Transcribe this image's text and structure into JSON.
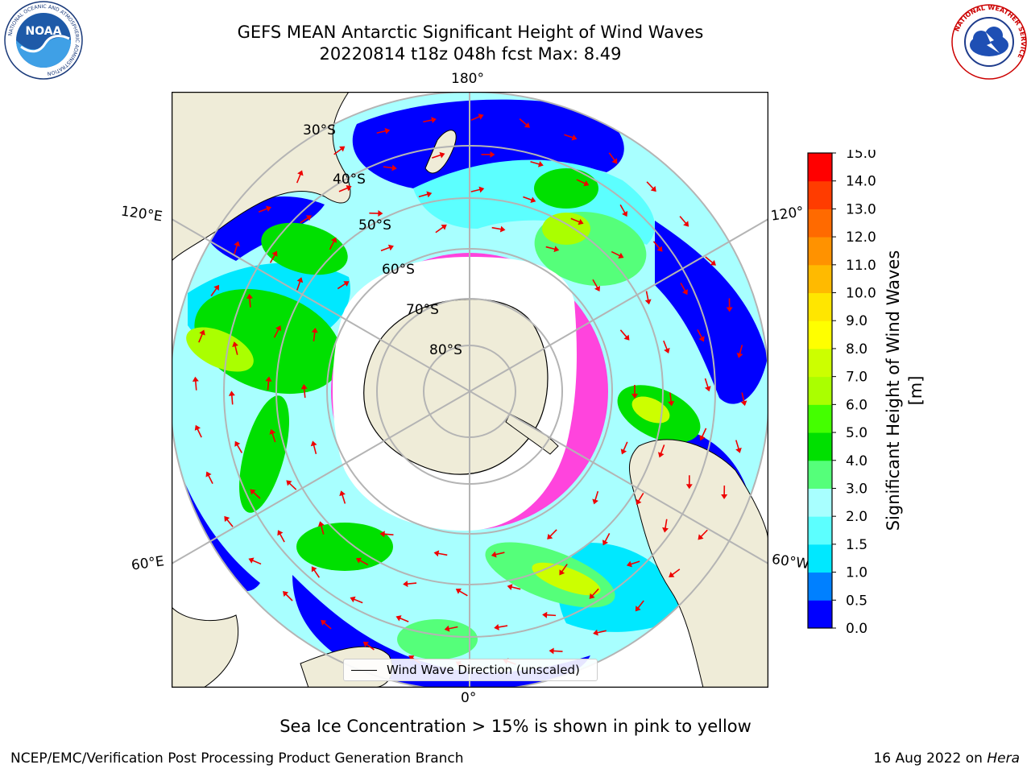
{
  "header": {
    "title_line1": "GEFS MEAN Antarctic Significant Height of Wind Waves",
    "title_line2": "20220814 t18z 048h fcst   Max: 8.49"
  },
  "logos": {
    "noaa": {
      "center_text": "NOAA",
      "ring_text": "NATIONAL OCEANIC AND ATMOSPHERIC ADMINISTRATION",
      "bottom_text": "U.S. DEPARTMENT OF COMMERCE"
    },
    "nws": {
      "ring_text": "NATIONAL WEATHER SERVICE"
    }
  },
  "map": {
    "projection": "south polar stereographic",
    "lon_labels": {
      "top": "180°",
      "bottom": "0°",
      "upper_left": "120°E",
      "lower_left": "60°E",
      "upper_right": "120°",
      "lower_right": "60°W"
    },
    "lat_labels": [
      "30°S",
      "40°S",
      "50°S",
      "60°S",
      "70°S",
      "80°S"
    ],
    "legend_label": "Wind Wave Direction (unscaled)",
    "colors": {
      "land": "#efecd8",
      "coast": "#000000",
      "grid": "#b4b4b4",
      "ice": "#ff44dd",
      "arrow": "#ee0000"
    }
  },
  "colorbar": {
    "label": "Significant Height of Wind Waves [m]",
    "ticks": [
      "0.0",
      "0.5",
      "1.0",
      "1.5",
      "2.0",
      "3.0",
      "4.0",
      "5.0",
      "6.0",
      "7.0",
      "8.0",
      "9.0",
      "10.0",
      "11.0",
      "12.0",
      "13.0",
      "14.0",
      "15.0"
    ],
    "colors": [
      "#0000ff",
      "#0080ff",
      "#00e8ff",
      "#5cffff",
      "#a8ffff",
      "#55ff7a",
      "#00e000",
      "#44ff00",
      "#aaff00",
      "#ccff00",
      "#ffff00",
      "#ffe600",
      "#ffba00",
      "#ff9200",
      "#ff6a00",
      "#ff3c00",
      "#ff0000"
    ]
  },
  "chart_data": {
    "type": "heatmap",
    "title": "GEFS MEAN Antarctic Significant Height of Wind Waves",
    "valid": "20220814 t18z 048h fcst",
    "max": 8.49,
    "unit": "m",
    "levels": [
      0.0,
      0.5,
      1.0,
      1.5,
      2.0,
      3.0,
      4.0,
      5.0,
      6.0,
      7.0,
      8.0,
      9.0,
      10.0,
      11.0,
      12.0,
      13.0,
      14.0,
      15.0
    ]
  },
  "footer": {
    "caption": "Sea Ice Concentration > 15% is shown in pink to yellow",
    "credit": "NCEP/EMC/Verification Post Processing Product Generation Branch",
    "date_text": "16 Aug 2022 on ",
    "machine": "Hera"
  }
}
